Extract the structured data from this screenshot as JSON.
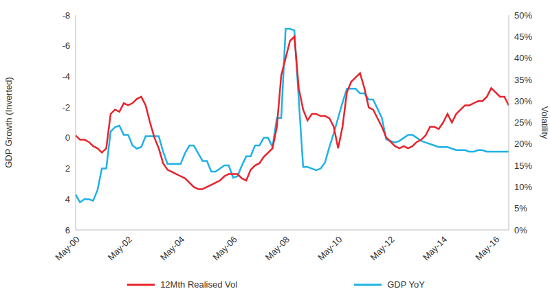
{
  "chart_data": {
    "type": "line",
    "ylabel": "GDP Growth (Inverted)",
    "y2label": "Volatility",
    "categories": [
      "May-00",
      null,
      null,
      null,
      null,
      null,
      null,
      null,
      null,
      null,
      null,
      null,
      "May-02",
      null,
      null,
      null,
      null,
      null,
      null,
      null,
      null,
      null,
      null,
      null,
      "May-04",
      null,
      null,
      null,
      null,
      null,
      null,
      null,
      null,
      null,
      null,
      null,
      "May-06",
      null,
      null,
      null,
      null,
      null,
      null,
      null,
      null,
      null,
      null,
      null,
      "May-08",
      null,
      null,
      null,
      null,
      null,
      null,
      null,
      null,
      null,
      null,
      null,
      "May-10",
      null,
      null,
      null,
      null,
      null,
      null,
      null,
      null,
      null,
      null,
      null,
      "May-12",
      null,
      null,
      null,
      null,
      null,
      null,
      null,
      null,
      null,
      null,
      null,
      "May-14",
      null,
      null,
      null,
      null,
      null,
      null,
      null,
      null,
      null,
      null,
      null,
      "May-16",
      null,
      null,
      null
    ],
    "series": [
      {
        "name": "GDP YoY",
        "color": "#1fb1e6",
        "values": [
          3.7,
          4.2,
          4.0,
          4.0,
          4.1,
          3.4,
          2.0,
          2.0,
          -0.4,
          -0.7,
          -0.8,
          -0.2,
          -0.2,
          0.5,
          0.7,
          0.6,
          -0.1,
          -0.1,
          -0.1,
          -0.1,
          0.9,
          1.7,
          1.7,
          1.7,
          1.7,
          1.0,
          0.5,
          0.5,
          1.0,
          1.5,
          1.5,
          2.2,
          2.2,
          2.0,
          1.8,
          1.8,
          2.6,
          2.5,
          1.8,
          1.2,
          1.2,
          0.5,
          0.5,
          0.0,
          0.0,
          0.6,
          -1.3,
          -1.3,
          -7.1,
          -7.1,
          -7.0,
          -2.5,
          1.9,
          1.9,
          2.0,
          2.1,
          2.0,
          1.6,
          0.6,
          -0.3,
          -1.3,
          -2.3,
          -3.2,
          -3.2,
          -3.2,
          -2.9,
          -2.9,
          -2.5,
          -2.5,
          -1.9,
          -1.3,
          0.1,
          0.2,
          0.3,
          0.2,
          0.0,
          -0.2,
          -0.2,
          0.0,
          0.2,
          0.3,
          0.4,
          0.5,
          0.6,
          0.6,
          0.6,
          0.7,
          0.8,
          0.8,
          0.8,
          0.9,
          0.9,
          0.8,
          0.8,
          0.9,
          0.9,
          0.9,
          0.9,
          0.9,
          0.9
        ]
      },
      {
        "name": "12Mth Realised Vol",
        "color": "#e8232b",
        "axis": "y2",
        "values": [
          22,
          21,
          21,
          20.5,
          19.5,
          19,
          18,
          19,
          27,
          28,
          27.5,
          29.5,
          29,
          29.5,
          30.5,
          31,
          29,
          25,
          21.5,
          19,
          15.5,
          14,
          13.5,
          13,
          12.5,
          12,
          11,
          10,
          9.5,
          9.5,
          10,
          10.5,
          11,
          11.5,
          12.5,
          13,
          13,
          13,
          12,
          11.5,
          14,
          15,
          15.5,
          17,
          18,
          19,
          24,
          36,
          40,
          44,
          45,
          33,
          28,
          25.5,
          27,
          27,
          26.5,
          26.5,
          26,
          24,
          19,
          24,
          32,
          34.5,
          35.5,
          36.5,
          33,
          28.5,
          28,
          26,
          24,
          21.5,
          20.5,
          19.5,
          19,
          19.5,
          19,
          19.5,
          20.5,
          21,
          22,
          24,
          24,
          23.5,
          25,
          27,
          25,
          27,
          28,
          29,
          29,
          29.5,
          30,
          30,
          31,
          33,
          32,
          31,
          31,
          29
        ]
      }
    ],
    "ylim": [
      6,
      -8
    ],
    "yticks": [
      -8,
      -6,
      -4,
      -2,
      0,
      2,
      4,
      6
    ],
    "y2lim": [
      0,
      50
    ],
    "y2ticks": [
      {
        "value": 0,
        "label": "0%"
      },
      {
        "value": 5,
        "label": "5%"
      },
      {
        "value": 10,
        "label": "10%"
      },
      {
        "value": 15,
        "label": "15%"
      },
      {
        "value": 20,
        "label": "20%"
      },
      {
        "value": 25,
        "label": "25%"
      },
      {
        "value": 30,
        "label": "30%"
      },
      {
        "value": 35,
        "label": "35%"
      },
      {
        "value": 40,
        "label": "40%"
      },
      {
        "value": 45,
        "label": "45%"
      },
      {
        "value": 50,
        "label": "50%"
      }
    ],
    "grid": false,
    "legend": "bottom"
  }
}
